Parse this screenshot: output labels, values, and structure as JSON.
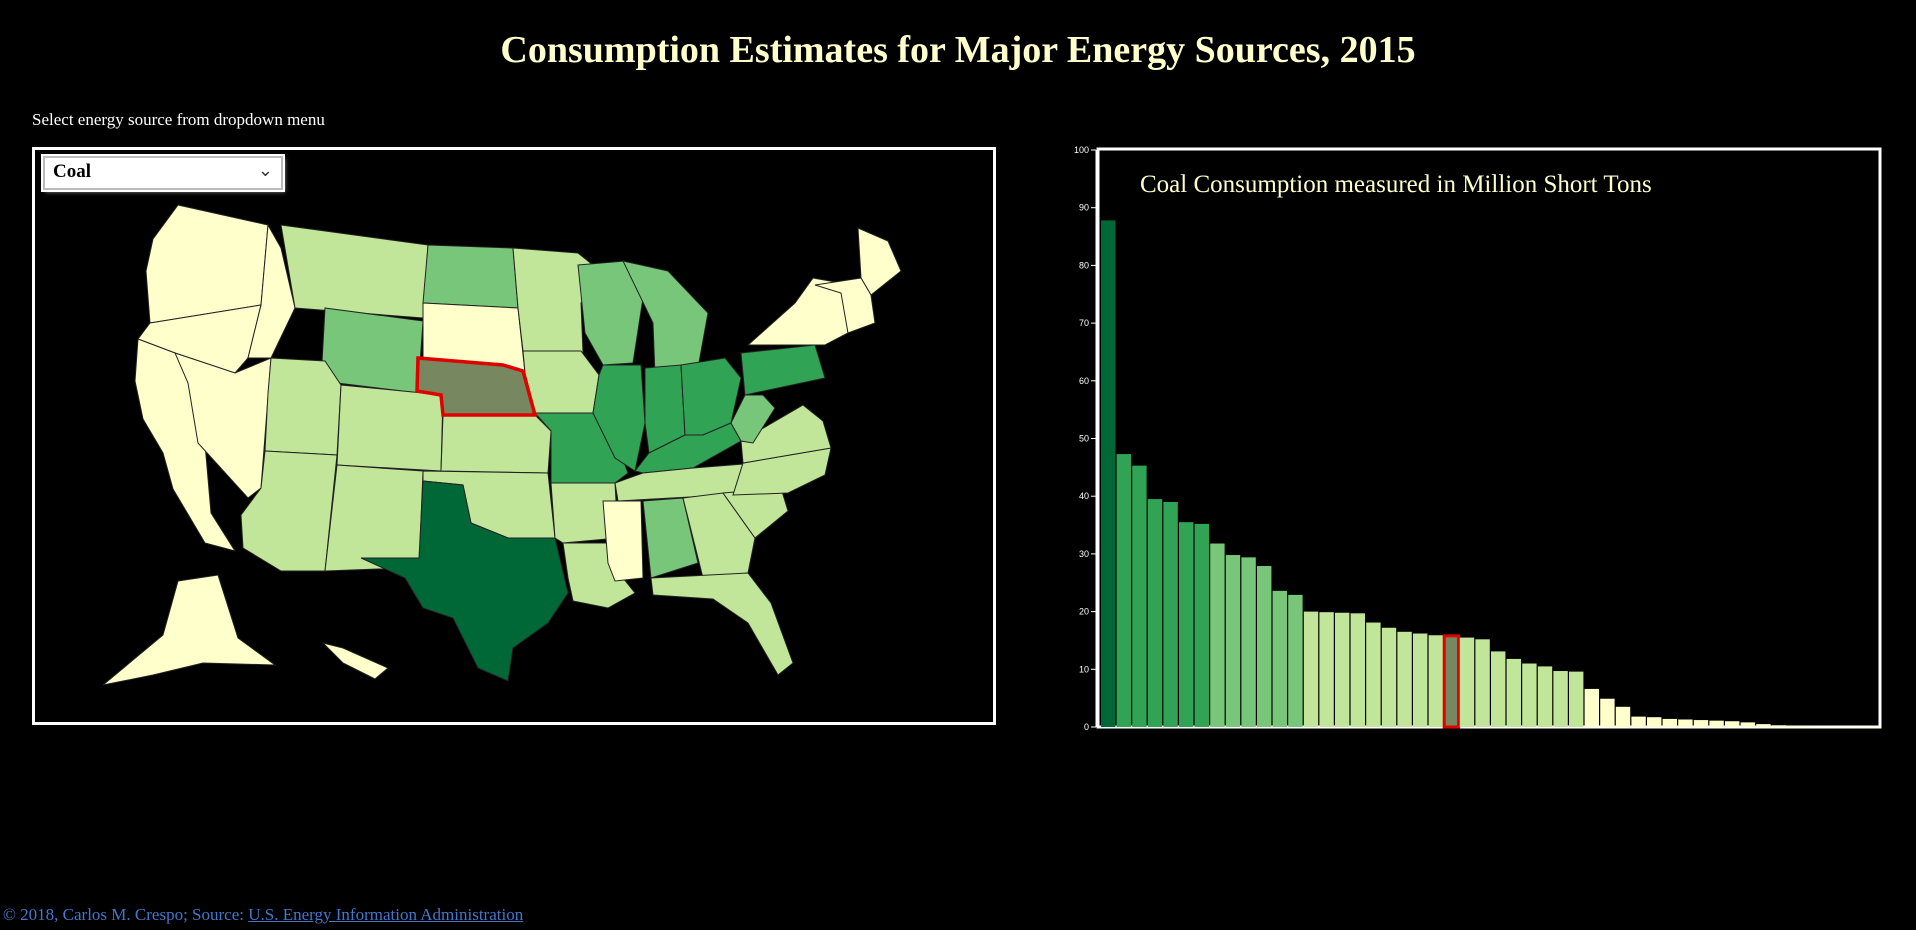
{
  "title": "Consumption Estimates for Major Energy Sources, 2015",
  "instruction": "Select energy source from dropdown menu",
  "dropdown": {
    "selected": "Coal"
  },
  "footer": {
    "prefix": "© 2018, Carlos M. Crespo; Source: ",
    "link_text": "U.S. Energy Information Administration"
  },
  "colors": {
    "background": "#000000",
    "title": "#ffffcc",
    "highlight": "#e00000",
    "highlight_fill": "#77875f",
    "scale": [
      "#ffffcc",
      "#c2e699",
      "#78c679",
      "#31a354",
      "#006837"
    ]
  },
  "map": {
    "states": [
      {
        "name": "WA",
        "color_level": 0
      },
      {
        "name": "OR",
        "color_level": 0
      },
      {
        "name": "CA",
        "color_level": 0
      },
      {
        "name": "ID",
        "color_level": 0
      },
      {
        "name": "NV",
        "color_level": 0
      },
      {
        "name": "MT",
        "color_level": 1
      },
      {
        "name": "WY",
        "color_level": 2
      },
      {
        "name": "UT",
        "color_level": 1
      },
      {
        "name": "AZ",
        "color_level": 1
      },
      {
        "name": "CO",
        "color_level": 1
      },
      {
        "name": "NM",
        "color_level": 1
      },
      {
        "name": "ND",
        "color_level": 2
      },
      {
        "name": "SD",
        "color_level": 0
      },
      {
        "name": "NE",
        "color_level": -1
      },
      {
        "name": "KS",
        "color_level": 1
      },
      {
        "name": "OK",
        "color_level": 1
      },
      {
        "name": "TX",
        "color_level": 4
      },
      {
        "name": "MN",
        "color_level": 1
      },
      {
        "name": "IA",
        "color_level": 1
      },
      {
        "name": "MO",
        "color_level": 3
      },
      {
        "name": "AR",
        "color_level": 1
      },
      {
        "name": "LA",
        "color_level": 1
      },
      {
        "name": "WI",
        "color_level": 2
      },
      {
        "name": "IL",
        "color_level": 3
      },
      {
        "name": "MI",
        "color_level": 2
      },
      {
        "name": "IN",
        "color_level": 3
      },
      {
        "name": "OH",
        "color_level": 3
      },
      {
        "name": "KY",
        "color_level": 3
      },
      {
        "name": "TN",
        "color_level": 1
      },
      {
        "name": "MS",
        "color_level": 0
      },
      {
        "name": "AL",
        "color_level": 2
      },
      {
        "name": "GA",
        "color_level": 1
      },
      {
        "name": "FL",
        "color_level": 1
      },
      {
        "name": "SC",
        "color_level": 1
      },
      {
        "name": "NC",
        "color_level": 1
      },
      {
        "name": "VA",
        "color_level": 1
      },
      {
        "name": "WV",
        "color_level": 2
      },
      {
        "name": "PA",
        "color_level": 3
      },
      {
        "name": "NY",
        "color_level": 0
      },
      {
        "name": "ME",
        "color_level": 0
      },
      {
        "name": "NE-states",
        "color_level": 0
      },
      {
        "name": "AK",
        "color_level": 0
      },
      {
        "name": "HI",
        "color_level": 0
      }
    ]
  },
  "chart_data": {
    "type": "bar",
    "title": "Coal Consumption measured in Million Short Tons",
    "ylim": [
      0,
      100
    ],
    "y_ticks": [
      0,
      10,
      20,
      30,
      40,
      50,
      60,
      70,
      80,
      90,
      100
    ],
    "highlight_index": 22,
    "values": [
      87.8,
      47.3,
      45.3,
      39.5,
      39.0,
      35.5,
      35.2,
      31.8,
      29.8,
      29.4,
      27.9,
      23.6,
      22.9,
      20.0,
      19.9,
      19.8,
      19.7,
      18.1,
      17.2,
      16.5,
      16.2,
      15.9,
      15.8,
      15.5,
      15.2,
      13.1,
      11.8,
      11.0,
      10.5,
      9.7,
      9.6,
      6.6,
      4.9,
      3.5,
      1.8,
      1.7,
      1.4,
      1.3,
      1.2,
      1.1,
      1.0,
      0.8,
      0.5,
      0.3,
      0.2,
      0.1,
      0.05,
      0.03,
      0.02,
      0.01
    ],
    "color_levels": [
      4,
      3,
      3,
      3,
      3,
      3,
      3,
      2,
      2,
      2,
      2,
      2,
      2,
      1,
      1,
      1,
      1,
      1,
      1,
      1,
      1,
      1,
      -1,
      1,
      1,
      1,
      1,
      1,
      1,
      1,
      1,
      0,
      0,
      0,
      0,
      0,
      0,
      0,
      0,
      0,
      0,
      0,
      0,
      0,
      0,
      0,
      0,
      0,
      0,
      0
    ]
  }
}
